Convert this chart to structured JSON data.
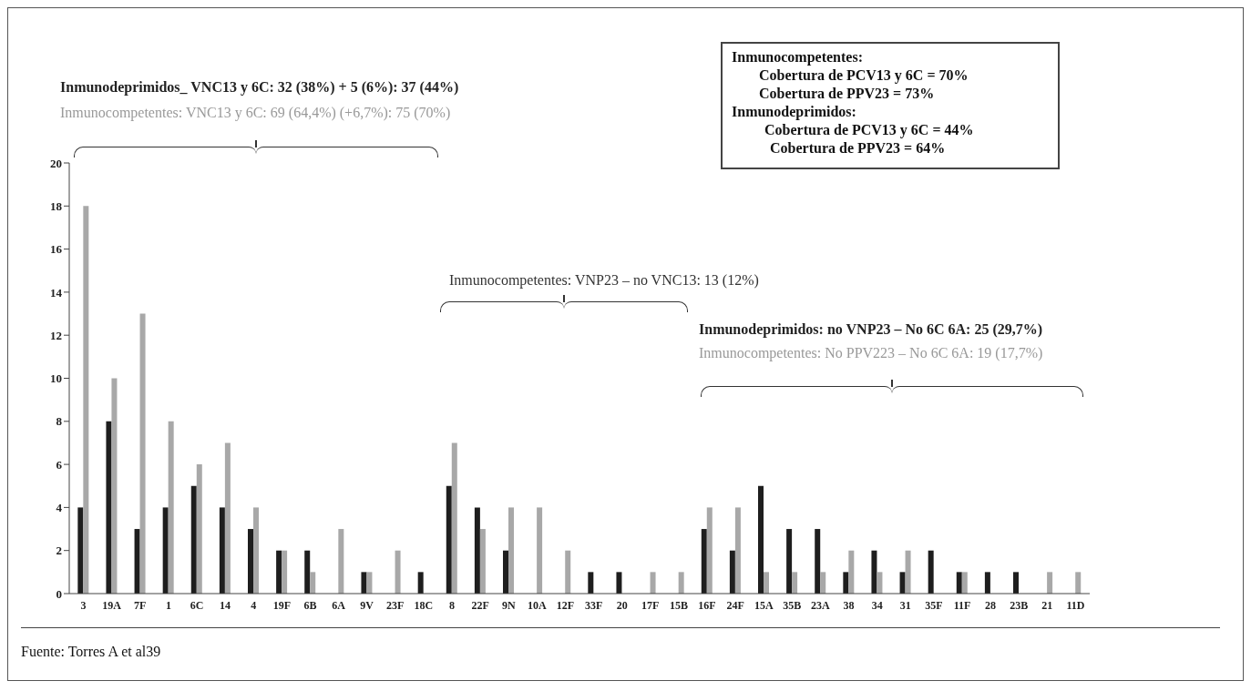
{
  "chart_data": {
    "type": "bar",
    "categories": [
      "3",
      "19A",
      "7F",
      "1",
      "6C",
      "14",
      "4",
      "19F",
      "6B",
      "6A",
      "9V",
      "23F",
      "18C",
      "8",
      "22F",
      "9N",
      "10A",
      "12F",
      "33F",
      "20",
      "17F",
      "15B",
      "16F",
      "24F",
      "15A",
      "35B",
      "23A",
      "38",
      "34",
      "31",
      "35F",
      "11F",
      "28",
      "23B",
      "21",
      "11D"
    ],
    "series": [
      {
        "color": "#1e1e1e",
        "values": [
          4,
          8,
          3,
          4,
          5,
          4,
          3,
          2,
          2,
          0,
          1,
          0,
          1,
          5,
          4,
          2,
          0,
          0,
          1,
          1,
          0,
          0,
          3,
          2,
          5,
          3,
          3,
          1,
          2,
          1,
          2,
          1,
          1,
          1,
          0,
          0
        ]
      },
      {
        "color": "#a8a8a8",
        "values": [
          18,
          10,
          13,
          8,
          6,
          7,
          4,
          2,
          1,
          3,
          1,
          2,
          0,
          7,
          3,
          4,
          4,
          2,
          0,
          0,
          1,
          1,
          4,
          4,
          1,
          1,
          1,
          2,
          1,
          2,
          0,
          1,
          0,
          0,
          1,
          1
        ]
      }
    ],
    "ylim": [
      0,
      20
    ],
    "yticks": [
      0,
      2,
      4,
      6,
      8,
      10,
      12,
      14,
      16,
      18,
      20
    ],
    "grid": false,
    "legend": false,
    "annotations": [
      "Inmunodeprimidos_ VNC13 y 6C: 32 (38%) + 5 (6%): 37 (44%)",
      "Inmunocompetentes: VNC13 y 6C: 69 (64,4%) (+6,7%): 75 (70%)",
      "Inmunocompetentes: VNP23 – no VNC13: 13 (12%)",
      "Inmunodeprimidos: no VNP23 – No 6C 6A: 25 (29,7%)",
      "Inmunocompetentes: No PPV223 – No 6C 6A: 19 (17,7%)",
      "Inmunocompetentes:",
      "Cobertura de PCV13 y 6C = 70%",
      "Cobertura de PPV23 = 73%",
      "Inmunodeprimidos:",
      "Cobertura de PCV13 y 6C = 44%",
      "Cobertura de PPV23 = 64%",
      "Fuente: Torres A et al39"
    ]
  }
}
